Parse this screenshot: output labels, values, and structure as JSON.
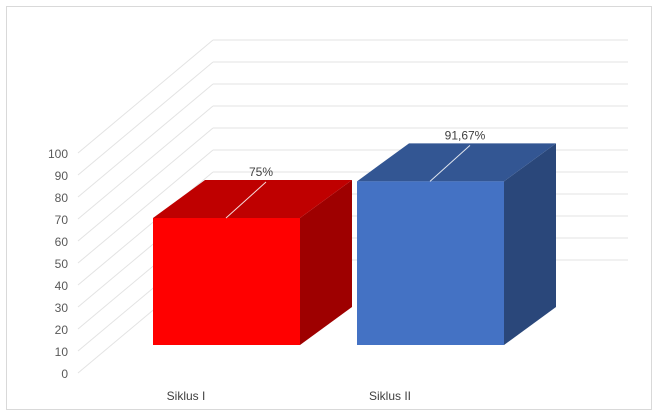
{
  "chart_data": {
    "type": "bar",
    "categories": [
      "Siklus I",
      "Siklus II"
    ],
    "series": [
      {
        "values": [
          75,
          91.67
        ],
        "colors": [
          "#FF0000",
          "#4472C4"
        ]
      }
    ],
    "data_labels": [
      "75%",
      "91,67%"
    ],
    "yticks": [
      "0",
      "10",
      "20",
      "30",
      "40",
      "50",
      "60",
      "70",
      "80",
      "90",
      "100"
    ],
    "ylim": [
      0,
      100
    ],
    "grid": true,
    "style": "3d-column",
    "title": "",
    "xlabel": "",
    "ylabel": ""
  }
}
